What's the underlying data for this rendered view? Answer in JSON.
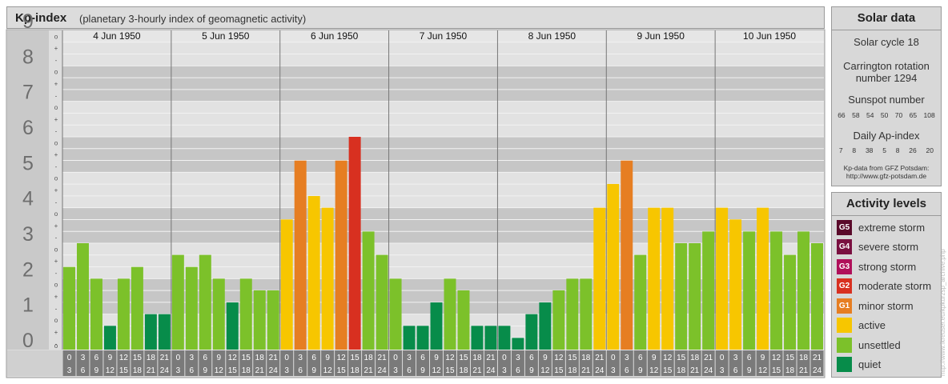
{
  "header": {
    "title": "Kp-index",
    "subtitle": "(planetary 3-hourly index of geomagnetic activity)"
  },
  "solar": {
    "title": "Solar data",
    "cycle": "Solar cycle 18",
    "carrington_line1": "Carrington rotation",
    "carrington_line2": "number 1294",
    "sunspot_title": "Sunspot number",
    "sunspot_values": [
      "66",
      "58",
      "54",
      "50",
      "70",
      "65",
      "108"
    ],
    "ap_title": "Daily Ap-index",
    "ap_values": [
      "7",
      "8",
      "38",
      "5",
      "8",
      "26",
      "20"
    ],
    "credit_line1": "Kp-data from GFZ Potsdam:",
    "credit_line2": "http://www.gfz-potsdam.de"
  },
  "legend": {
    "title": "Activity levels",
    "items": [
      {
        "code": "G5",
        "label": "extreme storm",
        "color": "#5a0a2a"
      },
      {
        "code": "G4",
        "label": "severe storm",
        "color": "#7a1040"
      },
      {
        "code": "G3",
        "label": "strong storm",
        "color": "#b0105a"
      },
      {
        "code": "G2",
        "label": "moderate storm",
        "color": "#d83020"
      },
      {
        "code": "G1",
        "label": "minor storm",
        "color": "#e67e22"
      },
      {
        "code": "",
        "label": "active",
        "color": "#f7c600"
      },
      {
        "code": "",
        "label": "unsettled",
        "color": "#7cc12a"
      },
      {
        "code": "",
        "label": "quiet",
        "color": "#078c4a"
      }
    ]
  },
  "watermark": "http://www.fkreuser.eu/kpkurzsp_archive.php",
  "colors": {
    "quiet": "#078c4a",
    "unsettled": "#7cc12a",
    "active": "#f7c600",
    "g1": "#e67e22",
    "g2": "#d83020",
    "band_dark": "#c6c6c6",
    "band_light": "#e2e2e2"
  },
  "chart_data": {
    "type": "bar",
    "title": "Kp-index",
    "ylim": [
      0,
      9
    ],
    "y_ticks": [
      "0",
      "1",
      "2",
      "3",
      "4",
      "5",
      "6",
      "7",
      "8",
      "9"
    ],
    "minor_marks": [
      "o",
      "+",
      "-"
    ],
    "days": [
      "4 Jun 1950",
      "5 Jun 1950",
      "6 Jun 1950",
      "7 Jun 1950",
      "8 Jun 1950",
      "9 Jun 1950",
      "10 Jun 1950"
    ],
    "interval_labels": [
      [
        "0",
        "3"
      ],
      [
        "3",
        "6"
      ],
      [
        "6",
        "9"
      ],
      [
        "9",
        "12"
      ],
      [
        "12",
        "15"
      ],
      [
        "15",
        "18"
      ],
      [
        "18",
        "21"
      ],
      [
        "21",
        "24"
      ]
    ],
    "values": [
      [
        2.33,
        3.0,
        2.0,
        0.67,
        2.0,
        2.33,
        1.0,
        1.0
      ],
      [
        2.67,
        2.33,
        2.67,
        2.0,
        1.33,
        2.0,
        1.67,
        1.67
      ],
      [
        3.67,
        5.33,
        4.33,
        4.0,
        5.33,
        6.0,
        3.33,
        2.67
      ],
      [
        2.0,
        0.67,
        0.67,
        1.33,
        2.0,
        1.67,
        0.67,
        0.67
      ],
      [
        0.67,
        0.33,
        1.0,
        1.33,
        1.67,
        2.0,
        2.0,
        4.0
      ],
      [
        4.67,
        5.33,
        2.67,
        4.0,
        4.0,
        3.0,
        3.0,
        3.33
      ],
      [
        4.0,
        3.67,
        3.33,
        4.0,
        3.33,
        2.67,
        3.33,
        3.0
      ]
    ]
  }
}
